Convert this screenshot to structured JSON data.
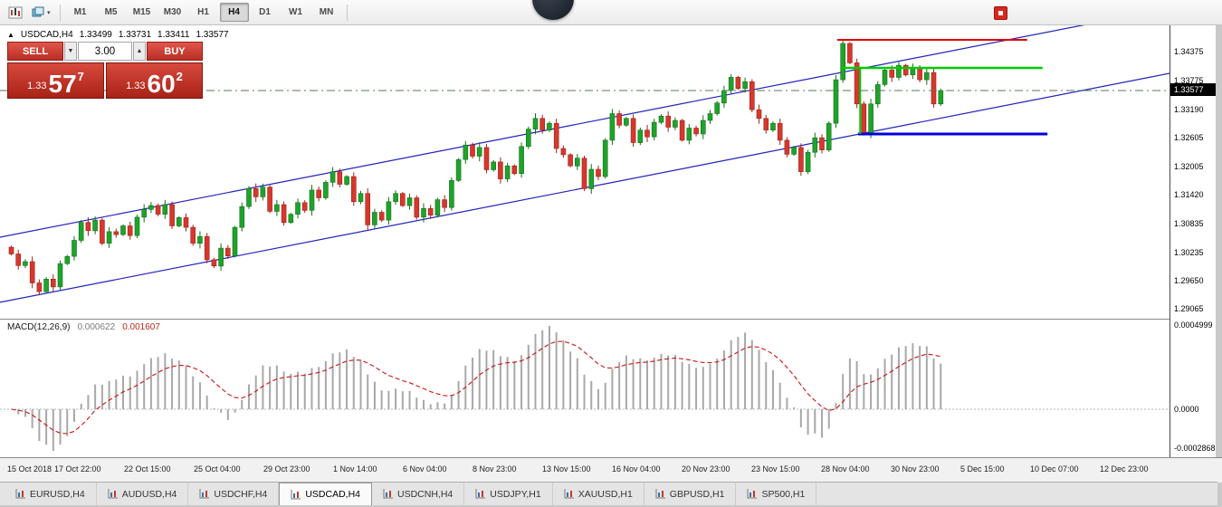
{
  "toolbar": {
    "timeframes": [
      "M1",
      "M5",
      "M15",
      "M30",
      "H1",
      "H4",
      "D1",
      "W1",
      "MN"
    ],
    "active_timeframe": "H4",
    "icons": {
      "left_primary": "candlestick-chart-icon",
      "left_secondary": "chart-cycle-icon",
      "dropdown_caret": "▾",
      "right": "record-icon"
    }
  },
  "quote_header": {
    "arrow": "▲",
    "symbol_period": "USDCAD,H4",
    "open": "1.33499",
    "high": "1.33731",
    "low": "1.33411",
    "close": "1.33577"
  },
  "trade_panel": {
    "sell_label": "SELL",
    "buy_label": "BUY",
    "volume": "3.00",
    "caret_down": "▼",
    "caret_up": "▲",
    "sell_price": {
      "small": "1.33",
      "big": "57",
      "sup": "7"
    },
    "buy_price": {
      "small": "1.33",
      "big": "60",
      "sup": "2"
    }
  },
  "price_axis": {
    "labels": [
      "1.34375",
      "1.33775",
      "1.33190",
      "1.32605",
      "1.32005",
      "1.31420",
      "1.30835",
      "1.30235",
      "1.29650",
      "1.29065"
    ],
    "current": "1.33577"
  },
  "macd_panel": {
    "title": "MACD(12,26,9)",
    "value": "0.000622",
    "signal": "0.001607",
    "axis": [
      "0.0004999",
      "0.0000",
      "-0.0002868"
    ]
  },
  "time_axis": [
    "15 Oct 2018",
    "17 Oct 22:00",
    "22 Oct 15:00",
    "25 Oct 04:00",
    "29 Oct 23:00",
    "1 Nov 14:00",
    "6 Nov 04:00",
    "8 Nov 23:00",
    "13 Nov 15:00",
    "16 Nov 04:00",
    "20 Nov 23:00",
    "23 Nov 15:00",
    "28 Nov 04:00",
    "30 Nov 23:00",
    "5 Dec 15:00",
    "10 Dec 07:00",
    "12 Dec 23:00"
  ],
  "tabs": {
    "items": [
      "EURUSD,H4",
      "AUDUSD,H4",
      "USDCHF,H4",
      "USDCAD,H4",
      "USDCNH,H4",
      "USDJPY,H1",
      "XAUUSD,H1",
      "GBPUSD,H1",
      "SP500,H1"
    ],
    "active": "USDCAD,H4"
  },
  "chart_data": {
    "type": "candlestick",
    "symbol": "USDCAD",
    "timeframe": "H4",
    "current_price": 1.33577,
    "ohlc": {
      "open": 1.33499,
      "high": 1.33731,
      "low": 1.33411,
      "close": 1.33577
    },
    "up_color": "#1fa32a",
    "down_color": "#d8372c",
    "closes": [
      1.302,
      1.2996,
      1.3004,
      1.296,
      1.2942,
      1.2968,
      1.2952,
      1.3,
      1.3015,
      1.3048,
      1.3085,
      1.3068,
      1.309,
      1.3042,
      1.3066,
      1.306,
      1.3078,
      1.3058,
      1.3096,
      1.3112,
      1.312,
      1.3102,
      1.3122,
      1.3078,
      1.3095,
      1.3075,
      1.3042,
      1.3056,
      1.3008,
      1.2995,
      1.3032,
      1.3016,
      1.3075,
      1.3118,
      1.3155,
      1.3138,
      1.3158,
      1.3108,
      1.3122,
      1.3085,
      1.3102,
      1.3126,
      1.311,
      1.3152,
      1.3136,
      1.3168,
      1.319,
      1.3164,
      1.318,
      1.3128,
      1.3145,
      1.308,
      1.3106,
      1.309,
      1.3128,
      1.3145,
      1.312,
      1.3136,
      1.3096,
      1.3114,
      1.31,
      1.3132,
      1.3116,
      1.3172,
      1.3215,
      1.3245,
      1.3222,
      1.324,
      1.3194,
      1.321,
      1.3175,
      1.3202,
      1.3186,
      1.3242,
      1.3278,
      1.33,
      1.3276,
      1.329,
      1.3238,
      1.3225,
      1.3202,
      1.3218,
      1.3155,
      1.3195,
      1.318,
      1.3255,
      1.331,
      1.3286,
      1.33,
      1.325,
      1.3276,
      1.3262,
      1.3292,
      1.3305,
      1.3282,
      1.3296,
      1.3255,
      1.328,
      1.3268,
      1.3296,
      1.331,
      1.3332,
      1.3358,
      1.3385,
      1.3362,
      1.3376,
      1.3318,
      1.33,
      1.3276,
      1.329,
      1.3255,
      1.3226,
      1.324,
      1.319,
      1.323,
      1.326,
      1.3235,
      1.329,
      1.338,
      1.3455,
      1.3415,
      1.333,
      1.327,
      1.333,
      1.337,
      1.34,
      1.3385,
      1.341,
      1.339,
      1.3405,
      1.338,
      1.3395,
      1.333,
      1.33577
    ],
    "channel_lines": [
      {
        "bar1": -1.3,
        "price1": 1.30546,
        "bar2": 166.1,
        "price2": 1.3528
      },
      {
        "bar1": -1.3,
        "price1": 1.292,
        "bar2": 166.1,
        "price2": 1.33933
      }
    ],
    "hlines": [
      {
        "color": "#e00000",
        "price": 1.34625,
        "bar1": 118.5,
        "bar2": 145.7,
        "w": 2
      },
      {
        "color": "#00cc00",
        "price": 1.34045,
        "bar1": 119.2,
        "bar2": 147.9,
        "w": 2.5
      },
      {
        "color": "#0000dd",
        "price": 1.32679,
        "bar1": 121.5,
        "bar2": 148.6,
        "w": 3
      }
    ],
    "vlines": [
      {
        "color": "#00cc00",
        "bar": 121.8,
        "price1": 1.34045,
        "price2": 1.32679,
        "w": 2
      }
    ],
    "macd": {
      "fast": 12,
      "slow": 26,
      "signal": 9,
      "histogram_color": "#a8a8a8",
      "signal_color": "#cc1111"
    }
  }
}
